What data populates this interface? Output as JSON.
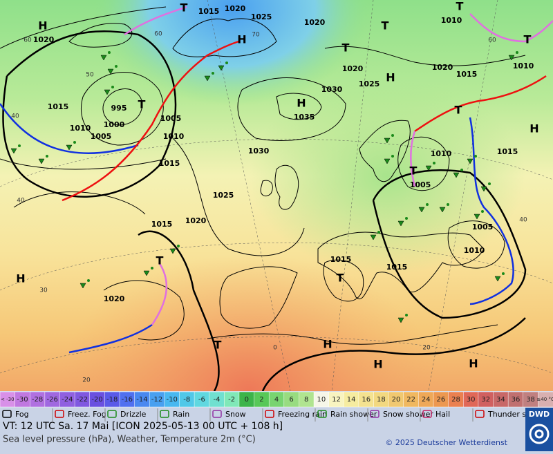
{
  "map": {
    "pressure_labels": [
      "1015",
      "1020",
      "1025",
      "1020",
      "1020",
      "1010",
      "1020",
      "1020",
      "1015",
      "1010",
      "1025",
      "1030",
      "1015",
      "995",
      "1000",
      "1005",
      "1010",
      "1005",
      "1010",
      "1035",
      "1030",
      "1010",
      "1015",
      "1015",
      "1005",
      "1025",
      "1015",
      "1020",
      "1005",
      "1010",
      "1015",
      "1015",
      "1020"
    ],
    "systems": [
      "H",
      "T",
      "T",
      "H",
      "T",
      "T",
      "T",
      "H",
      "H",
      "T",
      "T",
      "H",
      "T",
      "H",
      "T",
      "T",
      "H",
      "H",
      "H",
      "T"
    ],
    "temperature_labels": [
      "60",
      "60",
      "50",
      "40",
      "40",
      "30",
      "20",
      "70",
      "60",
      "40",
      "20",
      "0"
    ]
  },
  "legend": {
    "temperature_scale": [
      "< -30",
      "-30",
      "-28",
      "-26",
      "-24",
      "-22",
      "-20",
      "-18",
      "-16",
      "-14",
      "-12",
      "-10",
      "-8",
      "-6",
      "-4",
      "-2",
      "0",
      "2",
      "4",
      "6",
      "8",
      "10",
      "12",
      "14",
      "16",
      "18",
      "20",
      "22",
      "24",
      "26",
      "28",
      "30",
      "32",
      "34",
      "36",
      "38",
      "≥40 °C"
    ],
    "weather": [
      "Fog",
      "Freez. Fog",
      "Drizzle",
      "Rain",
      "Snow",
      "Freezing rain",
      "Rain shower",
      "Snow shower",
      "Hail",
      "Thunder storm"
    ]
  },
  "footer": {
    "valid_time": "VT: 12 UTC Sa.  17 Mai [ICON 2025-05-13  00 UTC + 108 h]",
    "description": "Sea level pressure (hPa), Weather, Temperature 2m (°C)",
    "copyright": "© 2025 Deutscher Wetterdienst",
    "logo": "DWD"
  }
}
